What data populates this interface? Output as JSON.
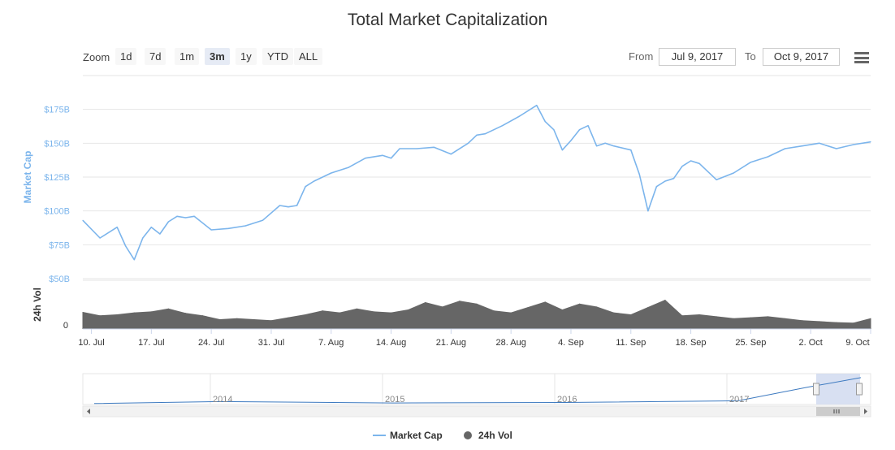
{
  "title": "Total Market Capitalization",
  "zoom": {
    "label": "Zoom",
    "buttons": [
      "1d",
      "7d",
      "1m",
      "3m",
      "1y",
      "YTD",
      "ALL"
    ],
    "active": "3m"
  },
  "range": {
    "from_label": "From",
    "from_value": "Jul 9, 2017",
    "to_label": "To",
    "to_value": "Oct 9, 2017"
  },
  "colors": {
    "market_cap": "#7cb5ec",
    "volume": "#666666",
    "navigator": "#3d7ac0",
    "navigator_mask": "#cbd6ee"
  },
  "navigator": {
    "year_labels": [
      "2014",
      "2015",
      "2016",
      "2017"
    ]
  },
  "chart_data": {
    "type": "line",
    "title": "Total Market Capitalization",
    "x_ticks": [
      "10. Jul",
      "17. Jul",
      "24. Jul",
      "31. Jul",
      "7. Aug",
      "14. Aug",
      "21. Aug",
      "28. Aug",
      "4. Sep",
      "11. Sep",
      "18. Sep",
      "25. Sep",
      "2. Oct",
      "9. Oct"
    ],
    "market_cap_axis": {
      "label": "Market Cap",
      "ticks": [
        "$50B",
        "$75B",
        "$100B",
        "$125B",
        "$150B",
        "$175B"
      ],
      "ylim": [
        50,
        200
      ],
      "unit": "$B"
    },
    "volume_axis": {
      "label": "24h Vol",
      "ticks": [
        "0"
      ]
    },
    "series": [
      {
        "name": "Market Cap",
        "x": [
          "Jul 9",
          "Jul 11",
          "Jul 13",
          "Jul 14",
          "Jul 15",
          "Jul 16",
          "Jul 17",
          "Jul 18",
          "Jul 19",
          "Jul 20",
          "Jul 21",
          "Jul 22",
          "Jul 24",
          "Jul 26",
          "Jul 28",
          "Jul 30",
          "Aug 1",
          "Aug 2",
          "Aug 3",
          "Aug 4",
          "Aug 5",
          "Aug 7",
          "Aug 9",
          "Aug 11",
          "Aug 13",
          "Aug 14",
          "Aug 15",
          "Aug 17",
          "Aug 19",
          "Aug 21",
          "Aug 23",
          "Aug 24",
          "Aug 25",
          "Aug 27",
          "Aug 29",
          "Aug 31",
          "Sep 1",
          "Sep 2",
          "Sep 3",
          "Sep 4",
          "Sep 5",
          "Sep 6",
          "Sep 7",
          "Sep 8",
          "Sep 9",
          "Sep 11",
          "Sep 12",
          "Sep 13",
          "Sep 14",
          "Sep 15",
          "Sep 16",
          "Sep 17",
          "Sep 18",
          "Sep 19",
          "Sep 21",
          "Sep 23",
          "Sep 25",
          "Sep 27",
          "Sep 29",
          "Oct 1",
          "Oct 3",
          "Oct 5",
          "Oct 7",
          "Oct 9"
        ],
        "values": [
          93,
          80,
          88,
          74,
          64,
          80,
          88,
          83,
          92,
          96,
          95,
          96,
          86,
          87,
          89,
          93,
          104,
          103,
          104,
          118,
          122,
          128,
          132,
          139,
          141,
          139,
          146,
          146,
          147,
          142,
          150,
          156,
          157,
          163,
          170,
          178,
          166,
          160,
          145,
          152,
          160,
          163,
          148,
          150,
          148,
          145,
          127,
          100,
          118,
          122,
          124,
          133,
          137,
          135,
          123,
          128,
          136,
          140,
          146,
          148,
          150,
          146,
          149,
          151
        ]
      },
      {
        "name": "24h Vol",
        "x": [
          "Jul 9",
          "Jul 11",
          "Jul 13",
          "Jul 15",
          "Jul 17",
          "Jul 19",
          "Jul 21",
          "Jul 23",
          "Jul 25",
          "Jul 27",
          "Jul 29",
          "Jul 31",
          "Aug 2",
          "Aug 4",
          "Aug 6",
          "Aug 8",
          "Aug 10",
          "Aug 12",
          "Aug 14",
          "Aug 16",
          "Aug 18",
          "Aug 20",
          "Aug 22",
          "Aug 24",
          "Aug 26",
          "Aug 28",
          "Aug 30",
          "Sep 1",
          "Sep 3",
          "Sep 5",
          "Sep 7",
          "Sep 9",
          "Sep 11",
          "Sep 13",
          "Sep 15",
          "Sep 17",
          "Sep 19",
          "Sep 21",
          "Sep 23",
          "Sep 25",
          "Sep 27",
          "Sep 29",
          "Oct 1",
          "Oct 3",
          "Oct 5",
          "Oct 7",
          "Oct 9"
        ],
        "values": [
          0.35,
          0.28,
          0.3,
          0.34,
          0.36,
          0.42,
          0.33,
          0.28,
          0.2,
          0.22,
          0.2,
          0.18,
          0.24,
          0.3,
          0.38,
          0.34,
          0.42,
          0.36,
          0.34,
          0.4,
          0.55,
          0.46,
          0.58,
          0.52,
          0.38,
          0.34,
          0.45,
          0.56,
          0.4,
          0.52,
          0.46,
          0.34,
          0.3,
          0.45,
          0.6,
          0.28,
          0.3,
          0.26,
          0.22,
          0.24,
          0.26,
          0.22,
          0.18,
          0.16,
          0.14,
          0.13,
          0.22
        ]
      }
    ],
    "navigator_series": {
      "x": [
        "2013",
        "2014",
        "2015",
        "2016",
        "2017-Jan",
        "2017-Jul",
        "2017-Oct"
      ],
      "values": [
        1,
        12,
        4,
        7,
        17,
        95,
        151
      ]
    },
    "legend": [
      "Market Cap",
      "24h Vol"
    ],
    "legend_position": "bottom-center",
    "grid": true
  }
}
